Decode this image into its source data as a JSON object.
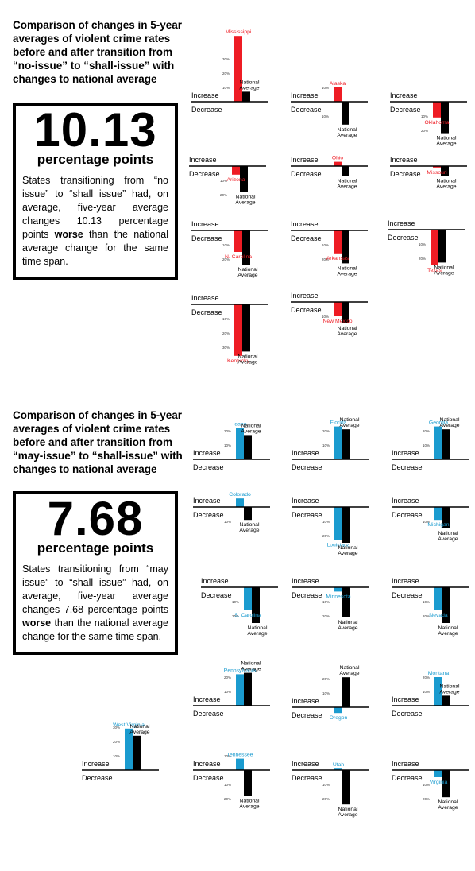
{
  "sections": [
    {
      "title": "Comparison of changes in 5-year averages of violent crime rates before and after transition from “no-issue” to “shall-issue” with changes to national average",
      "big_number": "10.13",
      "unit": "percentage points",
      "desc_before": "States transitioning from “no issue” to “shall issue” had, on average, five-year average changes 10.13 percentage points ",
      "desc_bold": "worse",
      "desc_after": " than the national average change for the same time span."
    },
    {
      "title": "Comparison of changes in 5-year averages of violent crime rates before and after transition from “may-issue” to “shall-issue” with changes to national average",
      "big_number": "7.68",
      "unit": "percentage points",
      "desc_before": "States transitioning from “may issue” to “shall issue” had, on average, five-year average changes 7.68 percentage points ",
      "desc_bold": "worse",
      "desc_after": " than the national average change for the same time span."
    }
  ],
  "labels": {
    "increase": "Increase",
    "decrease": "Decrease",
    "national": "National",
    "average": "Average",
    "ticks": [
      "10%",
      "20%",
      "30%"
    ]
  },
  "colors": {
    "no_issue": "#ee1c24",
    "may_issue": "#1a9bcf",
    "national": "#000000"
  },
  "chart_data": [
    {
      "type": "bar",
      "group": "no-issue to shall-issue",
      "unit": "percentage point change in 5-year average violent crime rate",
      "series_names": [
        "State",
        "National Average"
      ],
      "states": [
        {
          "name": "Mississippi",
          "state": 46,
          "national": 7
        },
        {
          "name": "Alaska",
          "state": 10,
          "national": -16
        },
        {
          "name": "Oklahoma",
          "state": -11,
          "national": -22
        },
        {
          "name": "Arizona",
          "state": -6,
          "national": -18
        },
        {
          "name": "Ohio",
          "state": 3,
          "national": -7
        },
        {
          "name": "Missouri",
          "state": -1,
          "national": -7
        },
        {
          "name": "N. Carolina",
          "state": -15,
          "national": -24
        },
        {
          "name": "Arkansas",
          "state": -16,
          "national": -23
        },
        {
          "name": "Texas",
          "state": -25,
          "national": -23
        },
        {
          "name": "Kentucky",
          "state": -36,
          "national": -33
        },
        {
          "name": "New Mexico",
          "state": -10,
          "national": -15
        }
      ]
    },
    {
      "type": "bar",
      "group": "may-issue to shall-issue",
      "unit": "percentage point change in 5-year average violent crime rate",
      "series_names": [
        "State",
        "National Average"
      ],
      "states": [
        {
          "name": "Idaho",
          "state": 22,
          "national": 17
        },
        {
          "name": "Florida",
          "state": 23,
          "national": 21
        },
        {
          "name": "Georgia",
          "state": 23,
          "national": 21
        },
        {
          "name": "Colorado",
          "state": 6,
          "national": -9
        },
        {
          "name": "Louisiana",
          "state": -23,
          "national": -25
        },
        {
          "name": "Michigan",
          "state": -9,
          "national": -15
        },
        {
          "name": "S. Carolina",
          "state": -16,
          "national": -25
        },
        {
          "name": "Minnesota",
          "state": -3,
          "national": -21
        },
        {
          "name": "Nevada",
          "state": -16,
          "national": -25
        },
        {
          "name": "Pennsylvania",
          "state": 22,
          "national": 23
        },
        {
          "name": "Oregon",
          "state": -4,
          "national": 21
        },
        {
          "name": "Montana",
          "state": 20,
          "national": 7
        },
        {
          "name": "West Virginia",
          "state": 29,
          "national": 24
        },
        {
          "name": "Tennessee",
          "state": 8,
          "national": -18
        },
        {
          "name": "Utah",
          "state": 1,
          "national": -24
        },
        {
          "name": "Virginia",
          "state": -5,
          "national": -19
        }
      ]
    }
  ]
}
